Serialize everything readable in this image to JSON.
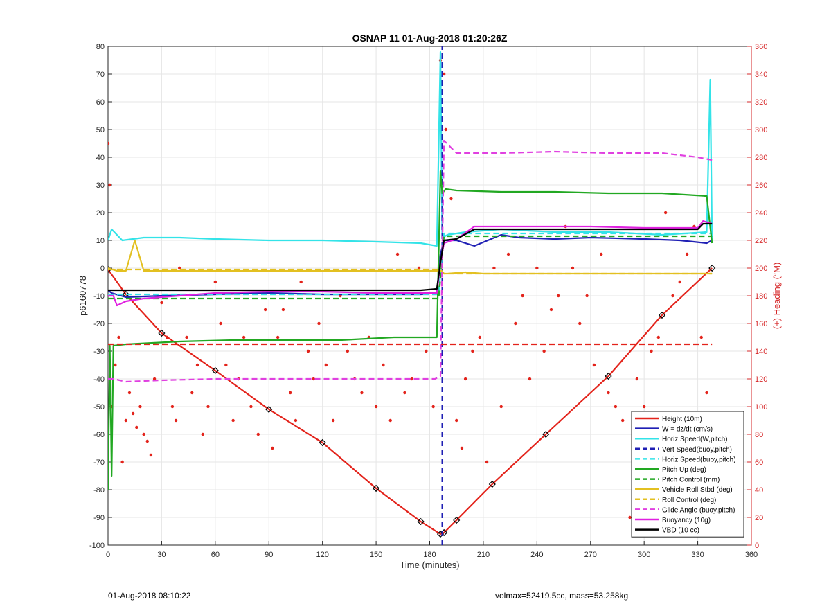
{
  "chart_data": {
    "type": "line",
    "title": "OSNAP 11 01-Aug-2018 01:20:26Z",
    "xlabel": "Time (minutes)",
    "ylabel_left": "p6160778",
    "ylabel_right": "(+) Heading (°M)",
    "xlim": [
      0,
      360
    ],
    "ylim_left": [
      -100,
      80
    ],
    "ylim_right": [
      0,
      360
    ],
    "xticks": [
      0,
      30,
      60,
      90,
      120,
      150,
      180,
      210,
      240,
      270,
      300,
      330,
      360
    ],
    "yticks_left": [
      -100,
      -90,
      -80,
      -70,
      -60,
      -50,
      -40,
      -30,
      -20,
      -10,
      0,
      10,
      20,
      30,
      40,
      50,
      60,
      70,
      80
    ],
    "yticks_right": [
      0,
      20,
      40,
      60,
      80,
      100,
      120,
      140,
      160,
      180,
      200,
      220,
      240,
      260,
      280,
      300,
      320,
      340,
      360
    ],
    "grid": true,
    "legend_position": "bottom-right",
    "colors": {
      "right_axis": "#d62728"
    },
    "series": [
      {
        "name": "Height (10m)",
        "color": "#e3231b",
        "style": "solid-dot",
        "axis": "left",
        "x": [
          0,
          10,
          30,
          60,
          90,
          120,
          150,
          175,
          186,
          188,
          195,
          215,
          245,
          280,
          310,
          338
        ],
        "y": [
          -0.5,
          -9.5,
          -23.5,
          -37,
          -51,
          -63,
          -79.5,
          -91.5,
          -96,
          -95.5,
          -91,
          -78,
          -60,
          -39,
          -17,
          0
        ]
      },
      {
        "name": "W = dz/dt (cm/s)",
        "color": "#1f1fb4",
        "style": "solid",
        "axis": "left",
        "x": [
          0,
          2,
          10,
          30,
          60,
          90,
          120,
          150,
          175,
          184,
          186,
          188,
          195,
          200,
          205,
          220,
          230,
          250,
          270,
          300,
          320,
          335,
          338
        ],
        "y": [
          -8,
          -9,
          -10.5,
          -10,
          -9.5,
          -9,
          -9.5,
          -9.5,
          -9.5,
          -9,
          5,
          10,
          10,
          9,
          8,
          12,
          11,
          10.5,
          11,
          10.5,
          10,
          9,
          10
        ]
      },
      {
        "name": "Horiz Speed(W,pitch)",
        "color": "#33e3e8",
        "style": "solid",
        "axis": "left",
        "x": [
          0,
          2,
          8,
          20,
          40,
          60,
          90,
          120,
          150,
          175,
          184,
          186,
          187,
          190,
          200,
          220,
          250,
          280,
          310,
          335,
          337,
          338
        ],
        "y": [
          10,
          14,
          10,
          11,
          11,
          10.5,
          10,
          10,
          9.5,
          9,
          8,
          78,
          11,
          12,
          13,
          14,
          13,
          13,
          12,
          13,
          68,
          10
        ]
      },
      {
        "name": "Vert Speed(buoy,pitch)",
        "color": "#1f1fb4",
        "style": "dashed",
        "axis": "left",
        "x": [
          187,
          187
        ],
        "y": [
          -100,
          80
        ]
      },
      {
        "name": "Horiz Speed(buoy,pitch)",
        "color": "#33e3e8",
        "style": "dashed",
        "axis": "left",
        "x": [
          0,
          185,
          188,
          338
        ],
        "y": [
          -9.5,
          -9.5,
          12.5,
          12.5
        ]
      },
      {
        "name": "Pitch Up (deg)",
        "color": "#22a822",
        "style": "solid",
        "axis": "left",
        "x": [
          0,
          1,
          2,
          3,
          10,
          40,
          70,
          100,
          130,
          160,
          184,
          186,
          187,
          189,
          195,
          220,
          250,
          280,
          310,
          335,
          338
        ],
        "y": [
          -80,
          -28,
          -75,
          -28,
          -27.5,
          -26.5,
          -26,
          -26,
          -26,
          -25,
          -25,
          35,
          27,
          28.5,
          28,
          27.5,
          27.5,
          27,
          27,
          26,
          9
        ]
      },
      {
        "name": "Pitch Control (mm)",
        "color": "#22a822",
        "style": "dashed",
        "axis": "left",
        "x": [
          0,
          185,
          188,
          338
        ],
        "y": [
          -11,
          -11,
          11.5,
          11.5
        ]
      },
      {
        "name": "Vehicle Roll Stbd (deg)",
        "color": "#e3c021",
        "style": "solid",
        "axis": "left",
        "x": [
          0,
          5,
          10,
          15,
          20,
          30,
          45,
          60,
          75,
          90,
          105,
          120,
          135,
          150,
          165,
          180,
          186,
          188,
          190,
          200,
          210,
          230,
          250,
          270,
          290,
          310,
          330,
          338
        ],
        "y": [
          0,
          -1,
          -1,
          10,
          -1,
          -1,
          -1,
          -1,
          -1,
          -1,
          -1,
          -1,
          -1,
          -1,
          -1,
          -1,
          -1,
          -2,
          -2,
          -1.5,
          -2,
          -2,
          -2,
          -2,
          -2,
          -2,
          -2,
          -2
        ]
      },
      {
        "name": "Roll Control (deg)",
        "color": "#e3c021",
        "style": "dashed",
        "axis": "left",
        "x": [
          0,
          186,
          188,
          338
        ],
        "y": [
          -0.5,
          -0.5,
          -2,
          -2
        ]
      },
      {
        "name": "Glide Angle (buoy,pitch)",
        "color": "#e040e0",
        "style": "dashed",
        "axis": "left",
        "x": [
          0,
          3,
          10,
          30,
          60,
          90,
          120,
          150,
          170,
          183,
          186,
          188,
          195,
          220,
          250,
          280,
          310,
          330,
          338
        ],
        "y": [
          -40,
          -40,
          -41,
          -40.5,
          -40,
          -40,
          -40,
          -40,
          -40,
          -40,
          -39,
          46,
          41.5,
          41.5,
          42,
          41.5,
          41.5,
          40,
          39
        ]
      },
      {
        "name": "Buoyancy (10g)",
        "color": "#e020e0",
        "style": "solid",
        "axis": "left",
        "x": [
          0,
          3,
          5,
          10,
          20,
          40,
          60,
          90,
          120,
          150,
          175,
          184,
          186,
          188,
          195,
          205,
          220,
          240,
          270,
          300,
          330,
          333,
          338
        ],
        "y": [
          -10,
          -10,
          -13.5,
          -12,
          -11,
          -10,
          -9,
          -8.5,
          -8.5,
          -9,
          -9,
          -9,
          2,
          9,
          10.5,
          15,
          15,
          15,
          15,
          14.5,
          14.5,
          17,
          16
        ]
      },
      {
        "name": "VBD (10 cc)",
        "color": "#000000",
        "style": "solid",
        "axis": "left",
        "x": [
          0,
          3,
          10,
          20,
          40,
          60,
          90,
          120,
          150,
          175,
          184,
          186,
          188,
          195,
          205,
          225,
          250,
          280,
          310,
          330,
          333,
          338
        ],
        "y": [
          -8,
          -8,
          -8,
          -8,
          -8,
          -8,
          -8,
          -8,
          -8,
          -8,
          -7.5,
          2,
          10,
          10.5,
          14,
          14,
          14,
          14,
          14,
          14,
          16,
          16
        ]
      },
      {
        "name": "Heading target (dashed)",
        "color": "#e3231b",
        "style": "dashed",
        "axis": "right",
        "x": [
          0,
          338
        ],
        "y": [
          145,
          145
        ]
      }
    ],
    "heading_points": {
      "color": "#e3231b",
      "axis": "right",
      "x": [
        0,
        1,
        2,
        4,
        6,
        8,
        10,
        12,
        14,
        16,
        18,
        20,
        22,
        24,
        26,
        28,
        30,
        33,
        36,
        38,
        40,
        44,
        47,
        50,
        53,
        56,
        60,
        63,
        66,
        70,
        73,
        76,
        80,
        84,
        88,
        92,
        95,
        98,
        102,
        105,
        108,
        112,
        115,
        118,
        122,
        126,
        130,
        134,
        138,
        142,
        146,
        150,
        154,
        158,
        162,
        166,
        170,
        174,
        178,
        182,
        186,
        188,
        189,
        192,
        195,
        198,
        200,
        204,
        208,
        212,
        216,
        220,
        224,
        228,
        232,
        236,
        240,
        244,
        248,
        252,
        256,
        260,
        264,
        268,
        272,
        276,
        280,
        284,
        288,
        292,
        296,
        300,
        304,
        308,
        312,
        316,
        320,
        324,
        328,
        332,
        335
      ],
      "y": [
        290,
        260,
        100,
        130,
        150,
        60,
        90,
        110,
        95,
        85,
        100,
        80,
        75,
        65,
        120,
        180,
        175,
        150,
        100,
        90,
        200,
        150,
        110,
        130,
        80,
        100,
        190,
        160,
        130,
        90,
        120,
        150,
        100,
        80,
        170,
        70,
        150,
        170,
        110,
        90,
        190,
        140,
        120,
        160,
        130,
        90,
        180,
        140,
        120,
        110,
        150,
        100,
        130,
        90,
        210,
        110,
        120,
        200,
        140,
        100,
        350,
        340,
        300,
        250,
        90,
        70,
        120,
        140,
        150,
        60,
        200,
        100,
        210,
        160,
        180,
        120,
        200,
        140,
        170,
        180,
        230,
        200,
        160,
        180,
        130,
        210,
        110,
        100,
        90,
        20,
        120,
        100,
        140,
        150,
        240,
        180,
        190,
        210,
        230,
        150,
        110
      ]
    }
  },
  "footer": {
    "left": "01-Aug-2018 08:10:22",
    "right": "volmax=52419.5cc, mass=53.258kg"
  }
}
